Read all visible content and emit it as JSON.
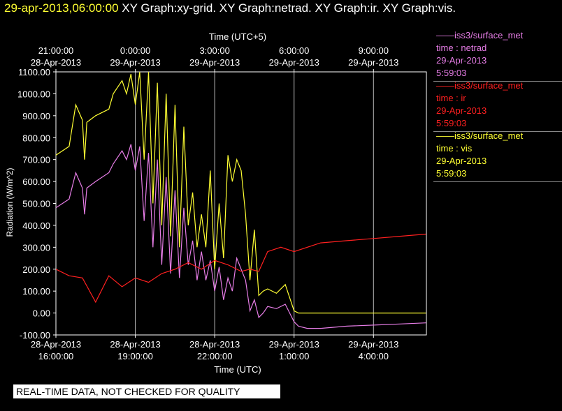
{
  "header": {
    "timestamp": "29-apr-2013,06:00:00",
    "graphs": "XY Graph:xy-grid.  XY Graph:netrad.  XY Graph:ir.  XY Graph:vis."
  },
  "legend": [
    {
      "source": "——iss3/surface_met",
      "var": "time : netrad",
      "date": "29-Apr-2013",
      "time": "5:59:03",
      "color": "#e67de6"
    },
    {
      "source": "——iss3/surface_met",
      "var": "time : ir",
      "date": "29-Apr-2013",
      "time": "5:59:03",
      "color": "#ff2020"
    },
    {
      "source": "——iss3/surface_met",
      "var": "time : vis",
      "date": "29-Apr-2013",
      "time": "5:59:03",
      "color": "#ffff33"
    }
  ],
  "notice": "REAL-TIME DATA, NOT CHECKED FOR QUALITY",
  "chart_data": {
    "type": "line",
    "top_axis_title": "Time (UTC+5)",
    "xlabel": "Time (UTC)",
    "ylabel": "Radiation  (W/m^2)",
    "xlim": [
      "2013-04-28T16:00",
      "2013-04-29T06:00"
    ],
    "ylim": [
      -100,
      1100
    ],
    "grid": true,
    "yticks": [
      "1100.00",
      "1000.00",
      "900.00",
      "800.00",
      "700.00",
      "600.00",
      "500.00",
      "400.00",
      "300.00",
      "200.00",
      "100.00",
      "0.00",
      "-100.00"
    ],
    "bottom_ticks": [
      {
        "date": "28-Apr-2013",
        "time": "16:00:00"
      },
      {
        "date": "28-Apr-2013",
        "time": "19:00:00"
      },
      {
        "date": "28-Apr-2013",
        "time": "22:00:00"
      },
      {
        "date": "29-Apr-2013",
        "time": "1:00:00"
      },
      {
        "date": "29-Apr-2013",
        "time": "4:00:00"
      }
    ],
    "top_ticks": [
      {
        "time": "21:00:00",
        "date": "28-Apr-2013"
      },
      {
        "time": "0:00:00",
        "date": "29-Apr-2013"
      },
      {
        "time": "3:00:00",
        "date": "29-Apr-2013"
      },
      {
        "time": "6:00:00",
        "date": "29-Apr-2013"
      },
      {
        "time": "9:00:00",
        "date": "29-Apr-2013"
      }
    ],
    "x_hours": [
      0,
      3,
      6,
      9,
      12
    ],
    "series": [
      {
        "name": "vis",
        "color": "#ffff33",
        "x": [
          "2013-04-28T16:00",
          "2013-04-28T16:30",
          "2013-04-28T16:45",
          "2013-04-28T17:00",
          "2013-04-28T17:05",
          "2013-04-28T17:10",
          "2013-04-28T17:30",
          "2013-04-28T18:00",
          "2013-04-28T18:10",
          "2013-04-28T18:30",
          "2013-04-28T18:40",
          "2013-04-28T18:50",
          "2013-04-28T19:00",
          "2013-04-28T19:10",
          "2013-04-28T19:20",
          "2013-04-28T19:30",
          "2013-04-28T19:40",
          "2013-04-28T19:50",
          "2013-04-28T20:00",
          "2013-04-28T20:10",
          "2013-04-28T20:20",
          "2013-04-28T20:30",
          "2013-04-28T20:40",
          "2013-04-28T20:50",
          "2013-04-28T21:00",
          "2013-04-28T21:10",
          "2013-04-28T21:20",
          "2013-04-28T21:30",
          "2013-04-28T21:40",
          "2013-04-28T21:50",
          "2013-04-28T22:00",
          "2013-04-28T22:10",
          "2013-04-28T22:20",
          "2013-04-28T22:30",
          "2013-04-28T22:40",
          "2013-04-28T22:50",
          "2013-04-28T23:00",
          "2013-04-28T23:10",
          "2013-04-28T23:20",
          "2013-04-28T23:30",
          "2013-04-28T23:40",
          "2013-04-28T23:50",
          "2013-04-29T00:00",
          "2013-04-29T00:20",
          "2013-04-29T00:40",
          "2013-04-29T01:00",
          "2013-04-29T01:10",
          "2013-04-29T01:30",
          "2013-04-29T02:00",
          "2013-04-29T03:00",
          "2013-04-29T04:00",
          "2013-04-29T05:00",
          "2013-04-29T05:59"
        ],
        "values": [
          720,
          760,
          950,
          880,
          700,
          870,
          900,
          930,
          1000,
          1060,
          1000,
          1090,
          950,
          1100,
          700,
          1100,
          500,
          1050,
          400,
          1000,
          350,
          950,
          300,
          850,
          400,
          550,
          300,
          450,
          300,
          650,
          200,
          500,
          250,
          720,
          600,
          700,
          650,
          450,
          150,
          380,
          80,
          100,
          110,
          90,
          130,
          10,
          0,
          0,
          0,
          0,
          0,
          0,
          0
        ]
      },
      {
        "name": "netrad",
        "color": "#e67de6",
        "x": [
          "2013-04-28T16:00",
          "2013-04-28T16:30",
          "2013-04-28T16:45",
          "2013-04-28T17:00",
          "2013-04-28T17:05",
          "2013-04-28T17:10",
          "2013-04-28T17:30",
          "2013-04-28T18:00",
          "2013-04-28T18:10",
          "2013-04-28T18:30",
          "2013-04-28T18:40",
          "2013-04-28T18:50",
          "2013-04-28T19:00",
          "2013-04-28T19:10",
          "2013-04-28T19:20",
          "2013-04-28T19:30",
          "2013-04-28T19:40",
          "2013-04-28T19:50",
          "2013-04-28T20:00",
          "2013-04-28T20:10",
          "2013-04-28T20:20",
          "2013-04-28T20:30",
          "2013-04-28T20:40",
          "2013-04-28T20:50",
          "2013-04-28T21:00",
          "2013-04-28T21:10",
          "2013-04-28T21:20",
          "2013-04-28T21:30",
          "2013-04-28T21:40",
          "2013-04-28T21:50",
          "2013-04-28T22:00",
          "2013-04-28T22:10",
          "2013-04-28T22:20",
          "2013-04-28T22:30",
          "2013-04-28T22:40",
          "2013-04-28T22:50",
          "2013-04-28T23:00",
          "2013-04-28T23:10",
          "2013-04-28T23:20",
          "2013-04-28T23:30",
          "2013-04-28T23:40",
          "2013-04-28T23:50",
          "2013-04-29T00:00",
          "2013-04-29T00:20",
          "2013-04-29T00:40",
          "2013-04-29T01:00",
          "2013-04-29T01:10",
          "2013-04-29T01:30",
          "2013-04-29T02:00",
          "2013-04-29T03:00",
          "2013-04-29T04:00",
          "2013-04-29T05:00",
          "2013-04-29T05:59"
        ],
        "values": [
          480,
          520,
          640,
          570,
          450,
          570,
          600,
          640,
          680,
          740,
          700,
          770,
          650,
          760,
          420,
          730,
          300,
          700,
          220,
          620,
          180,
          560,
          160,
          480,
          220,
          330,
          150,
          280,
          150,
          240,
          100,
          210,
          60,
          160,
          100,
          250,
          200,
          150,
          10,
          60,
          -20,
          0,
          30,
          20,
          40,
          -40,
          -60,
          -70,
          -70,
          -60,
          -55,
          -50,
          -45
        ]
      },
      {
        "name": "ir",
        "color": "#ff2020",
        "x": [
          "2013-04-28T16:00",
          "2013-04-28T16:30",
          "2013-04-28T17:00",
          "2013-04-28T17:30",
          "2013-04-28T18:00",
          "2013-04-28T18:30",
          "2013-04-28T19:00",
          "2013-04-28T19:30",
          "2013-04-28T20:00",
          "2013-04-28T20:30",
          "2013-04-28T21:00",
          "2013-04-28T21:30",
          "2013-04-28T22:00",
          "2013-04-28T22:30",
          "2013-04-28T23:00",
          "2013-04-28T23:20",
          "2013-04-28T23:40",
          "2013-04-29T00:00",
          "2013-04-29T00:30",
          "2013-04-29T01:00",
          "2013-04-29T02:00",
          "2013-04-29T03:00",
          "2013-04-29T04:00",
          "2013-04-29T05:00",
          "2013-04-29T05:59"
        ],
        "values": [
          200,
          170,
          160,
          50,
          170,
          120,
          160,
          140,
          180,
          200,
          230,
          200,
          240,
          220,
          190,
          200,
          190,
          280,
          300,
          280,
          320,
          330,
          340,
          350,
          360
        ]
      }
    ]
  }
}
